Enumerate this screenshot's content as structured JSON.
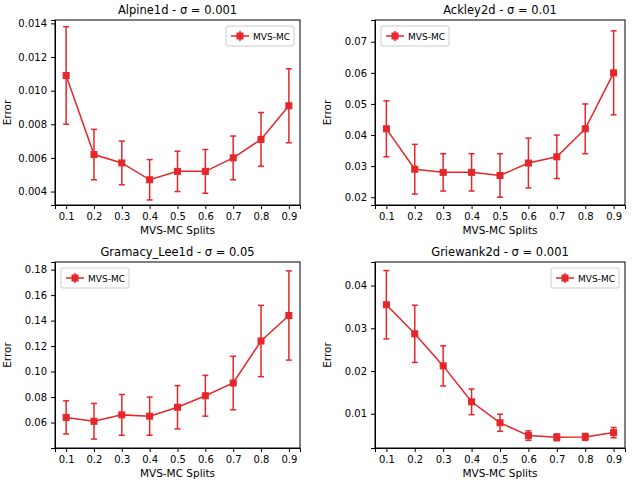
{
  "chart_data": [
    {
      "type": "line",
      "title": "Alpine1d - σ = 0.001",
      "x_label": "MVS-MC Splits",
      "y_label": "Error",
      "x": [
        0.1,
        0.2,
        0.3,
        0.4,
        0.5,
        0.6,
        0.7,
        0.8,
        0.9
      ],
      "series": [
        {
          "name": "MVS-MC",
          "color": "#e5262a",
          "marker": "square",
          "values": [
            0.0109,
            0.0062,
            0.0057,
            0.0047,
            0.0052,
            0.0052,
            0.006,
            0.0071,
            0.0091
          ],
          "errors": [
            0.0029,
            0.0015,
            0.0013,
            0.0012,
            0.0012,
            0.0013,
            0.0013,
            0.0016,
            0.0022
          ]
        }
      ],
      "xlim": [
        0.06,
        0.94
      ],
      "xticks": [
        0.1,
        0.2,
        0.3,
        0.4,
        0.5,
        0.6,
        0.7,
        0.8,
        0.9
      ],
      "ylim": [
        0.0032,
        0.0142
      ],
      "yticks": [
        0.004,
        0.006,
        0.008,
        {
          "value": 0.01,
          "label": "0.010"
        },
        0.012,
        0.014
      ],
      "legend": "upper right"
    },
    {
      "type": "line",
      "title": "Ackley2d - σ = 0.01",
      "x_label": "MVS-MC Splits",
      "y_label": "Error",
      "x": [
        0.1,
        0.2,
        0.3,
        0.4,
        0.5,
        0.6,
        0.7,
        0.8,
        0.9
      ],
      "series": [
        {
          "name": "MVS-MC",
          "color": "#e5262a",
          "marker": "square",
          "values": [
            0.042,
            0.029,
            0.028,
            0.028,
            0.027,
            0.031,
            0.033,
            0.042,
            0.06
          ],
          "errors": [
            0.009,
            0.008,
            0.006,
            0.006,
            0.007,
            0.008,
            0.007,
            0.008,
            0.0135
          ]
        }
      ],
      "xlim": [
        0.06,
        0.94
      ],
      "xticks": [
        0.1,
        0.2,
        0.3,
        0.4,
        0.5,
        0.6,
        0.7,
        0.8,
        0.9
      ],
      "ylim": [
        0.0175,
        0.077
      ],
      "yticks": [
        0.02,
        0.03,
        0.04,
        0.05,
        0.06,
        0.07
      ],
      "legend": "upper left"
    },
    {
      "type": "line",
      "title": "Gramacy_Lee1d - σ = 0.05",
      "x_label": "MVS-MC Splits",
      "y_label": "Error",
      "x": [
        0.1,
        0.2,
        0.3,
        0.4,
        0.5,
        0.6,
        0.7,
        0.8,
        0.9
      ],
      "series": [
        {
          "name": "MVS-MC",
          "color": "#e5262a",
          "marker": "square",
          "values": [
            0.064,
            0.061,
            0.066,
            0.065,
            0.072,
            0.081,
            0.091,
            0.124,
            0.144
          ],
          "errors": [
            0.013,
            0.014,
            0.016,
            0.015,
            0.017,
            0.016,
            0.021,
            0.028,
            0.035
          ]
        }
      ],
      "xlim": [
        0.06,
        0.94
      ],
      "xticks": [
        0.1,
        0.2,
        0.3,
        0.4,
        0.5,
        0.6,
        0.7,
        0.8,
        0.9
      ],
      "ylim": [
        0.04,
        0.186
      ],
      "yticks": [
        0.06,
        0.08,
        {
          "value": 0.1,
          "label": "0.10"
        },
        0.12,
        0.14,
        0.16,
        0.18
      ],
      "legend": "upper left"
    },
    {
      "type": "line",
      "title": "Griewank2d - σ = 0.001",
      "x_label": "MVS-MC Splits",
      "y_label": "Error",
      "x": [
        0.1,
        0.2,
        0.3,
        0.4,
        0.5,
        0.6,
        0.7,
        0.8,
        0.9
      ],
      "series": [
        {
          "name": "MVS-MC",
          "color": "#e5262a",
          "marker": "square",
          "values": [
            0.0355,
            0.0287,
            0.0212,
            0.0128,
            0.0079,
            0.0049,
            0.0045,
            0.0046,
            0.0056
          ],
          "errors": [
            0.008,
            0.0067,
            0.0047,
            0.003,
            0.002,
            0.0011,
            0.0008,
            0.0008,
            0.0012
          ]
        }
      ],
      "xlim": [
        0.06,
        0.94
      ],
      "xticks": [
        0.1,
        0.2,
        0.3,
        0.4,
        0.5,
        0.6,
        0.7,
        0.8,
        0.9
      ],
      "ylim": [
        0.002,
        0.0455
      ],
      "yticks": [
        0.01,
        0.02,
        0.03,
        0.04
      ],
      "legend": "upper right"
    }
  ]
}
